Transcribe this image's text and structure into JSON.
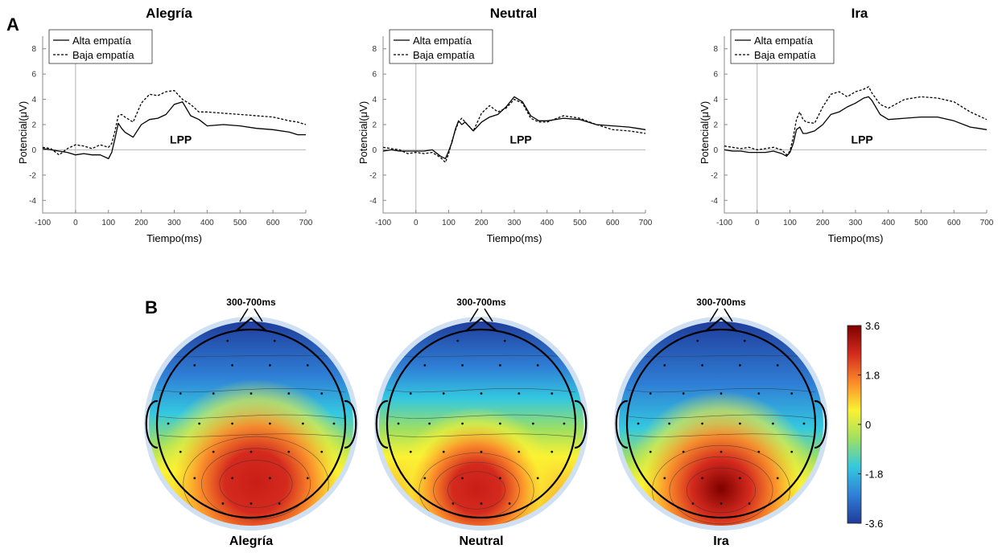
{
  "panel_labels": {
    "a": "A",
    "b": "B"
  },
  "colorbar": {
    "ticks": [
      "3.6",
      "1.8",
      "0",
      "-1.8",
      "-3.6"
    ],
    "max": 3.6,
    "min": -3.6,
    "colormap": "jet",
    "colors": [
      "#7f0000",
      "#d42a1e",
      "#fb8a2a",
      "#fbf233",
      "#a0e060",
      "#34c8e0",
      "#2f7fd6",
      "#1f3b9a"
    ]
  },
  "colors": {
    "line": "#000000",
    "axis": "#888888",
    "zero_line": "#b5b5b5",
    "head_halo": "#cfe0f2"
  },
  "chart_data": [
    {
      "type": "line",
      "title": "Alegría",
      "xlabel": "Tiempo(ms)",
      "ylabel": "Potencial(μV)",
      "annotation": "LPP",
      "xlim": [
        -100,
        700
      ],
      "ylim": [
        -5,
        9
      ],
      "xticks": [
        "-100",
        "0",
        "100",
        "200",
        "300",
        "400",
        "500",
        "600",
        "700"
      ],
      "yticks": [
        "-4",
        "-2",
        "0",
        "2",
        "4",
        "6",
        "8"
      ],
      "legend_position": "top-left",
      "x": [
        -100,
        -75,
        -50,
        -25,
        0,
        25,
        50,
        75,
        100,
        110,
        120,
        130,
        140,
        150,
        175,
        200,
        225,
        250,
        275,
        300,
        325,
        350,
        375,
        400,
        450,
        500,
        550,
        600,
        650,
        675,
        700
      ],
      "series": [
        {
          "name": "Alta empatía",
          "dash": "solid",
          "values": [
            0.1,
            0.0,
            -0.1,
            -0.2,
            -0.4,
            -0.3,
            -0.4,
            -0.4,
            -0.7,
            -0.2,
            0.9,
            2.1,
            1.7,
            1.4,
            1.0,
            2.0,
            2.4,
            2.5,
            2.8,
            3.6,
            3.8,
            2.7,
            2.4,
            1.9,
            2.0,
            1.9,
            1.7,
            1.6,
            1.4,
            1.2,
            1.2
          ]
        },
        {
          "name": "Baja empatía",
          "dash": "dashed",
          "values": [
            0.2,
            0.1,
            -0.4,
            0.1,
            0.4,
            0.3,
            0.1,
            0.4,
            0.2,
            0.5,
            1.5,
            2.7,
            2.8,
            2.6,
            2.2,
            3.7,
            4.4,
            4.3,
            4.6,
            4.7,
            4.0,
            3.6,
            3.0,
            3.0,
            2.9,
            2.8,
            2.7,
            2.6,
            2.3,
            2.2,
            2.0
          ]
        }
      ]
    },
    {
      "type": "line",
      "title": "Neutral",
      "xlabel": "Tiempo(ms)",
      "ylabel": "Potencial(μV)",
      "annotation": "LPP",
      "xlim": [
        -100,
        700
      ],
      "ylim": [
        -5,
        9
      ],
      "xticks": [
        "-100",
        "0",
        "100",
        "200",
        "300",
        "400",
        "500",
        "600",
        "700"
      ],
      "yticks": [
        "-4",
        "-2",
        "0",
        "2",
        "4",
        "6",
        "8"
      ],
      "legend_position": "top-left",
      "x": [
        -100,
        -75,
        -50,
        -25,
        0,
        25,
        50,
        75,
        90,
        100,
        110,
        120,
        130,
        140,
        150,
        175,
        200,
        225,
        250,
        275,
        300,
        325,
        350,
        375,
        400,
        450,
        500,
        550,
        600,
        650,
        675,
        700
      ],
      "series": [
        {
          "name": "Alta empatía",
          "dash": "solid",
          "values": [
            -0.1,
            0.0,
            -0.1,
            -0.1,
            -0.1,
            -0.1,
            0.0,
            -0.5,
            -0.7,
            -0.1,
            0.6,
            1.6,
            2.3,
            2.0,
            2.2,
            1.5,
            2.2,
            2.6,
            2.8,
            3.4,
            4.2,
            3.8,
            2.7,
            2.3,
            2.3,
            2.5,
            2.4,
            2.0,
            1.9,
            1.8,
            1.7,
            1.6
          ]
        },
        {
          "name": "Baja empatía",
          "dash": "dashed",
          "values": [
            0.2,
            0.1,
            0.0,
            -0.3,
            -0.2,
            -0.3,
            -0.2,
            -0.6,
            -1.0,
            -0.3,
            0.7,
            1.5,
            2.2,
            2.5,
            2.2,
            1.5,
            2.9,
            3.5,
            3.0,
            3.3,
            4.0,
            3.7,
            2.5,
            2.2,
            2.2,
            2.7,
            2.5,
            2.0,
            1.6,
            1.5,
            1.4,
            1.3
          ]
        }
      ]
    },
    {
      "type": "line",
      "title": "Ira",
      "xlabel": "Tiempo(ms)",
      "ylabel": "Potencial(μV)",
      "annotation": "LPP",
      "xlim": [
        -100,
        700
      ],
      "ylim": [
        -5,
        9
      ],
      "xticks": [
        "-100",
        "0",
        "100",
        "200",
        "300",
        "400",
        "500",
        "600",
        "700"
      ],
      "yticks": [
        "-4",
        "-2",
        "0",
        "2",
        "4",
        "6",
        "8"
      ],
      "legend_position": "top-left",
      "x": [
        -100,
        -75,
        -50,
        -25,
        0,
        25,
        50,
        75,
        90,
        100,
        110,
        120,
        130,
        140,
        150,
        175,
        200,
        225,
        250,
        275,
        300,
        325,
        340,
        350,
        375,
        400,
        450,
        500,
        550,
        600,
        650,
        675,
        700
      ],
      "series": [
        {
          "name": "Alta empatía",
          "dash": "solid",
          "values": [
            0.0,
            -0.1,
            -0.1,
            -0.2,
            -0.2,
            -0.2,
            -0.1,
            -0.3,
            -0.5,
            -0.2,
            0.5,
            1.6,
            1.8,
            1.3,
            1.3,
            1.5,
            2.0,
            2.8,
            3.0,
            3.4,
            3.7,
            4.1,
            4.2,
            3.9,
            2.8,
            2.4,
            2.5,
            2.6,
            2.6,
            2.3,
            1.8,
            1.7,
            1.6
          ]
        },
        {
          "name": "Baja empatía",
          "dash": "dashed",
          "values": [
            0.3,
            0.2,
            0.1,
            0.2,
            0.0,
            0.1,
            0.2,
            0.0,
            -0.4,
            -0.1,
            1.0,
            2.4,
            3.0,
            2.4,
            2.2,
            2.1,
            3.4,
            4.4,
            4.6,
            4.2,
            4.6,
            4.8,
            5.0,
            4.5,
            3.6,
            3.3,
            4.0,
            4.2,
            4.1,
            3.8,
            3.0,
            2.7,
            2.4
          ]
        }
      ]
    }
  ],
  "topomaps": [
    {
      "label": "Alegría",
      "window": "300-700ms"
    },
    {
      "label": "Neutral",
      "window": "300-700ms"
    },
    {
      "label": "Ira",
      "window": "300-700ms"
    }
  ]
}
